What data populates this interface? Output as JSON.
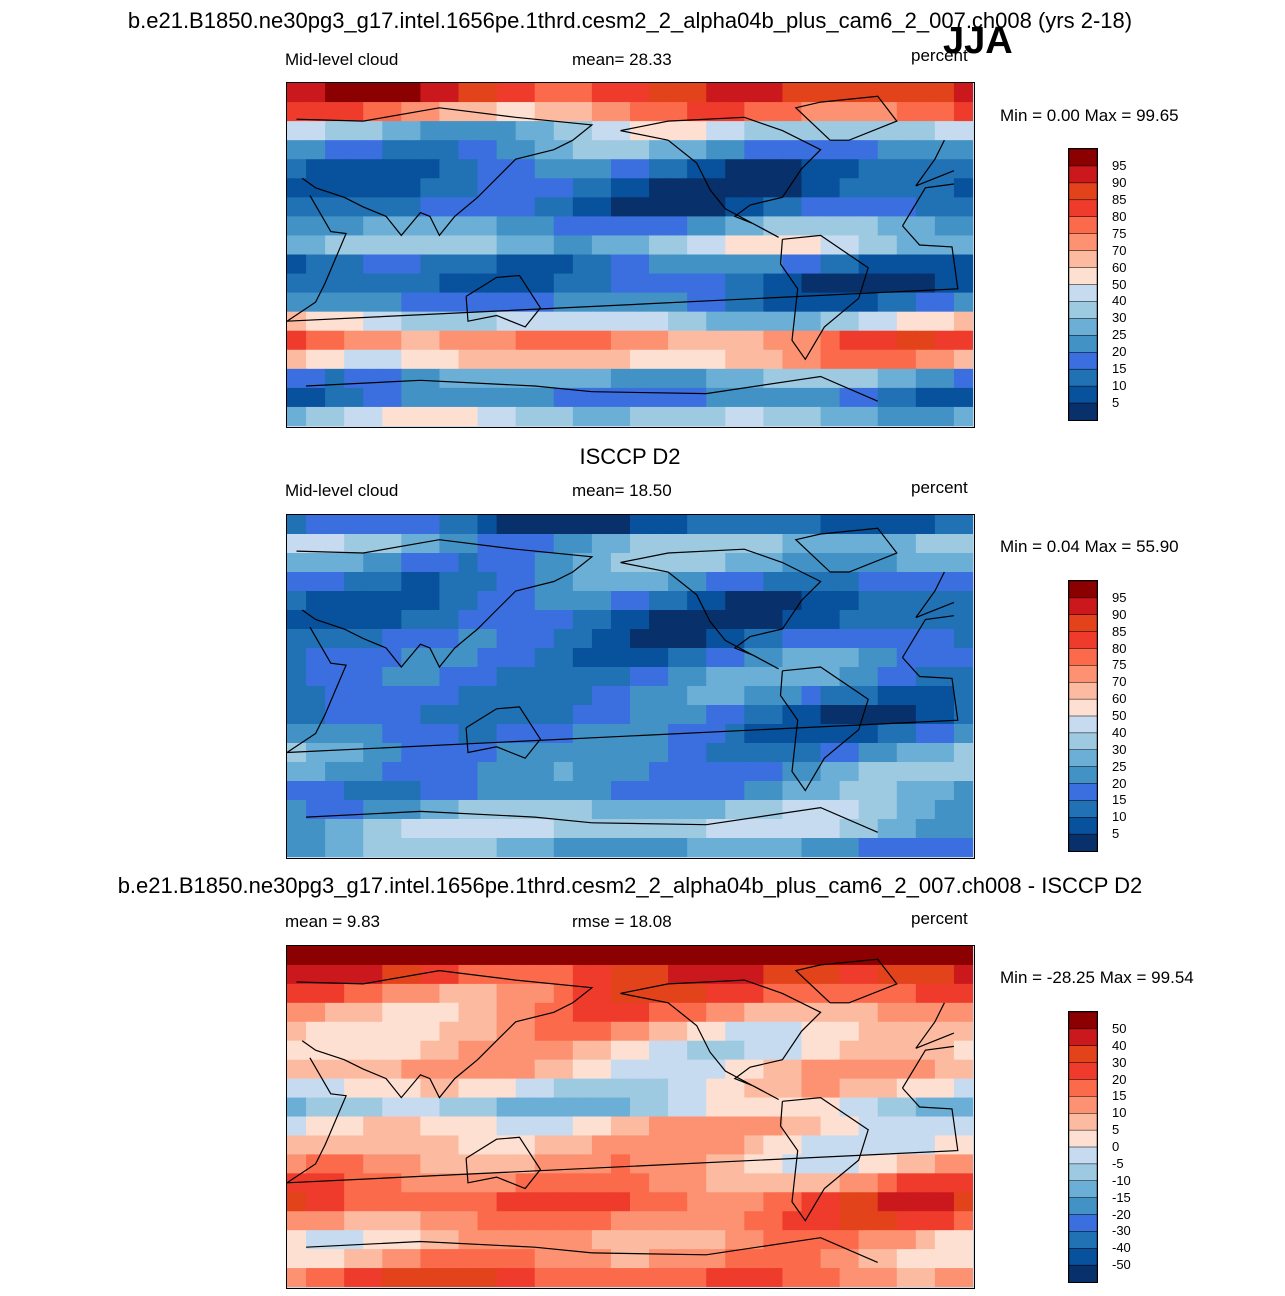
{
  "season": "JJA",
  "palette_16": [
    "#08306b",
    "#08519c",
    "#2171b5",
    "#3b6fe0",
    "#4292c6",
    "#6baed6",
    "#9ecae1",
    "#c6dbef",
    "#fee0d2",
    "#fcbba1",
    "#fc9272",
    "#fb6a4a",
    "#ef3b2c",
    "#e2431a",
    "#cb181d",
    "#8b0000"
  ],
  "colors": {
    "ocean_low": "#0a2a8c",
    "land": "#000000",
    "frame": "#000000"
  },
  "chart_data": [
    {
      "type": "heatmap",
      "id": "model",
      "title": "b.e21.B1850.ne30pg3_g17.intel.1656pe.1thrd.cesm2_2_alpha04b_plus_cam6_2_007.ch008 (yrs 2-18)",
      "left_label": "Mid-level cloud",
      "center_label": "mean=  28.33",
      "right_label": "percent",
      "min_max": "Min =   0.00 Max =  99.65",
      "colorbar_levels": [
        "95",
        "90",
        "85",
        "80",
        "75",
        "70",
        "60",
        "50",
        "40",
        "30",
        "25",
        "20",
        "15",
        "10",
        "5"
      ],
      "zonal_profile": [
        88,
        70,
        40,
        25,
        12,
        8,
        12,
        30,
        40,
        15,
        10,
        20,
        45,
        70,
        60,
        30,
        20,
        40
      ],
      "style": "model"
    },
    {
      "type": "heatmap",
      "id": "obs",
      "title": "ISCCP D2",
      "left_label": "Mid-level cloud",
      "center_label": "mean=  18.50",
      "right_label": "percent",
      "min_max": "Min =   0.04 Max =  55.90",
      "colorbar_levels": [
        "95",
        "90",
        "85",
        "80",
        "75",
        "70",
        "60",
        "50",
        "40",
        "30",
        "25",
        "20",
        "15",
        "10",
        "5"
      ],
      "zonal_profile": [
        10,
        35,
        30,
        20,
        12,
        10,
        15,
        20,
        22,
        18,
        14,
        18,
        25,
        28,
        25,
        35,
        40,
        30
      ],
      "style": "obs"
    },
    {
      "type": "heatmap",
      "id": "diff",
      "title": "b.e21.B1850.ne30pg3_g17.intel.1656pe.1thrd.cesm2_2_alpha04b_plus_cam6_2_007.ch008 - ISCCP D2",
      "left_label": "mean =   9.83",
      "center_label": "rmse =  18.08",
      "right_label": "percent",
      "min_max": "Min = -28.25 Max =  99.54",
      "colorbar_levels": [
        "50",
        "40",
        "30",
        "20",
        "15",
        "10",
        "5",
        "0",
        "-5",
        "-10",
        "-15",
        "-20",
        "-30",
        "-40",
        "-50"
      ],
      "zonal_profile": [
        60,
        35,
        25,
        15,
        8,
        5,
        10,
        2,
        -8,
        5,
        8,
        12,
        20,
        28,
        22,
        12,
        15,
        25
      ],
      "style": "diff"
    }
  ]
}
